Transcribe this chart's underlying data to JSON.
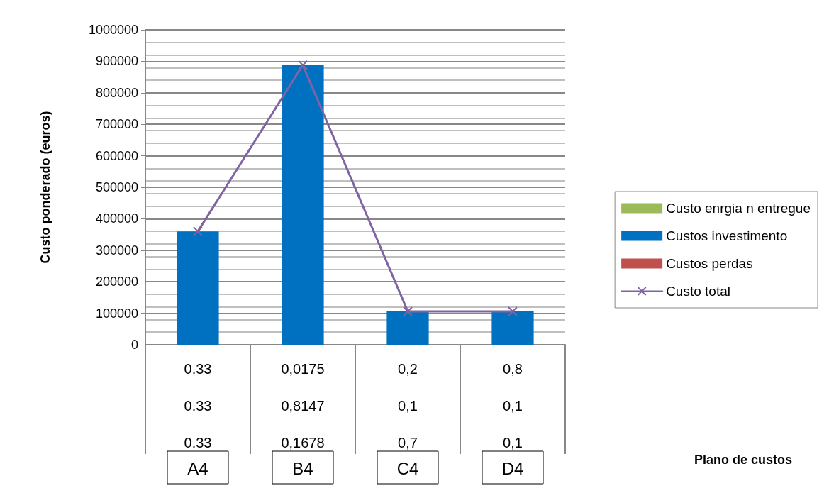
{
  "chart_data": {
    "type": "bar",
    "stacked": true,
    "ylabel": "Custo ponderado (euros)",
    "categories": [
      "A4",
      "B4",
      "C4",
      "D4"
    ],
    "series": [
      {
        "name": "Custo enrgia n entregue",
        "color": "#9bbb59",
        "values": [
          0,
          0,
          0,
          0
        ]
      },
      {
        "name": "Custos investimento",
        "color": "#0070c0",
        "values": [
          360000,
          888000,
          106000,
          106000
        ]
      },
      {
        "name": "Custos perdas",
        "color": "#c0504d",
        "values": [
          0,
          0,
          0,
          0
        ]
      },
      {
        "name": "Custo total",
        "type": "line",
        "color": "#8064a2",
        "marker": "cross",
        "values": [
          360000,
          888000,
          106000,
          106000
        ]
      }
    ],
    "annotations": [
      "0.33",
      "0.33",
      "0.33",
      "0,0175",
      "0,8147",
      "0,1678",
      "0,2",
      "0,1",
      "0,7",
      "0,8",
      "0,1",
      "0,1",
      "Plano de custos"
    ],
    "ylim": [
      0,
      1000000
    ],
    "yticks": [
      0,
      100000,
      200000,
      300000,
      400000,
      500000,
      600000,
      700000,
      800000,
      900000,
      1000000
    ],
    "grid": true,
    "legend": "right"
  }
}
